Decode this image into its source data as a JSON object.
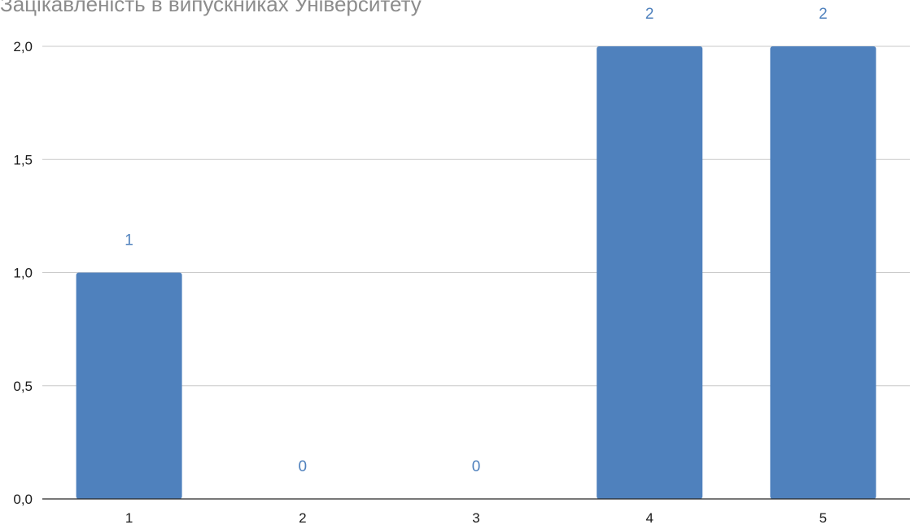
{
  "chart_data": {
    "type": "bar",
    "title": "Зацікавленість в випускниках Університету",
    "xlabel": "",
    "ylabel": "",
    "categories": [
      "1",
      "2",
      "3",
      "4",
      "5"
    ],
    "values": [
      1,
      0,
      0,
      2,
      2
    ],
    "data_labels": [
      "1",
      "0",
      "0",
      "2",
      "2"
    ],
    "ylim": [
      0,
      2
    ],
    "y_ticks": [
      0,
      0.5,
      1,
      1.5,
      2
    ],
    "y_tick_labels": [
      "0,0",
      "0,5",
      "1,0",
      "1,5",
      "2,0"
    ],
    "grid": true,
    "legend": "none",
    "bar_color": "#4f81bd",
    "label_color": "#4f81bd"
  }
}
